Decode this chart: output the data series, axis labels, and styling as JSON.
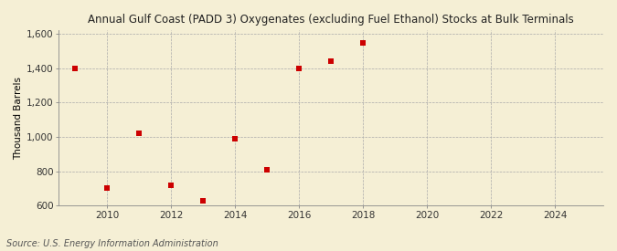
{
  "title": "Annual Gulf Coast (PADD 3) Oxygenates (excluding Fuel Ethanol) Stocks at Bulk Terminals",
  "ylabel": "Thousand Barrels",
  "source": "Source: U.S. Energy Information Administration",
  "background_color": "#f5efd5",
  "data_color": "#cc0000",
  "years": [
    2009,
    2010,
    2011,
    2012,
    2013,
    2014,
    2015,
    2016,
    2017,
    2018
  ],
  "values": [
    1400,
    700,
    1020,
    720,
    630,
    990,
    810,
    1400,
    1440,
    1550
  ],
  "xlim": [
    2008.5,
    2025.5
  ],
  "ylim": [
    600,
    1620
  ],
  "yticks": [
    600,
    800,
    1000,
    1200,
    1400,
    1600
  ],
  "ytick_labels": [
    "600",
    "800",
    "1,000",
    "1,200",
    "1,400",
    "1,600"
  ],
  "xticks": [
    2010,
    2012,
    2014,
    2016,
    2018,
    2020,
    2022,
    2024
  ],
  "title_fontsize": 8.5,
  "axis_fontsize": 7.5,
  "source_fontsize": 7,
  "marker_size": 20
}
